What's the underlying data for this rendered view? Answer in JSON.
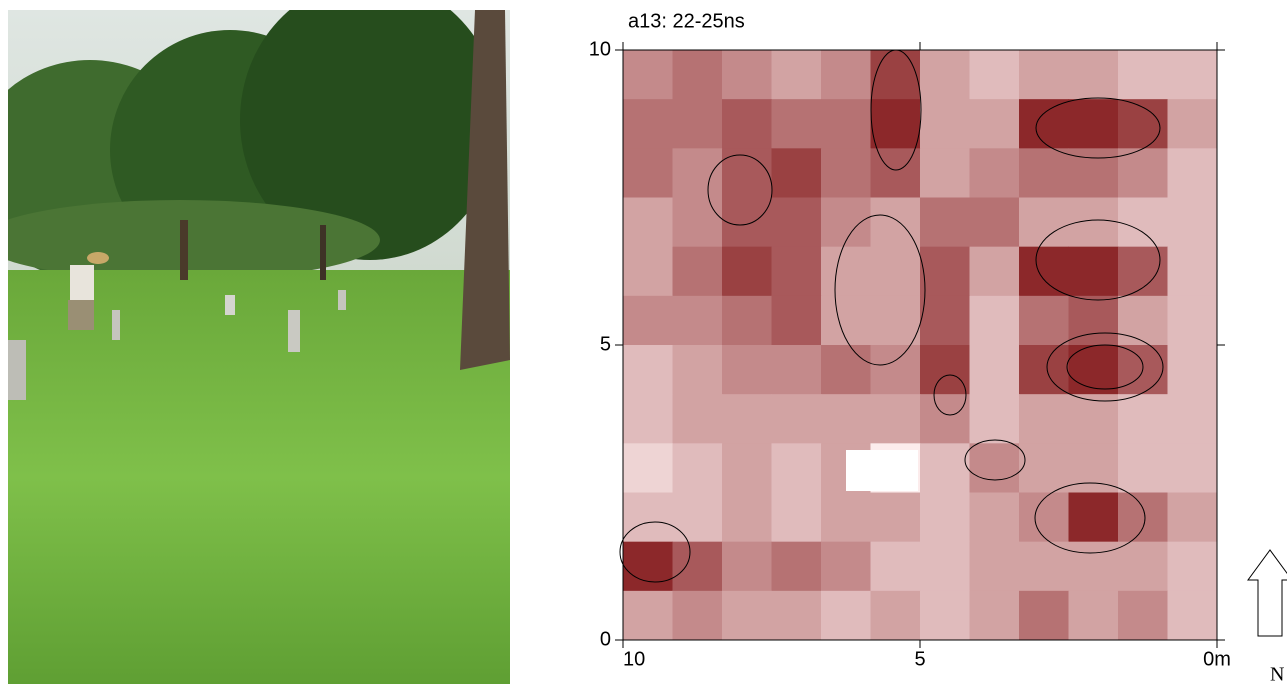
{
  "chart_data": {
    "type": "heatmap",
    "title": "a13: 22-25ns",
    "xlim": [
      10,
      0
    ],
    "ylim": [
      0,
      10
    ],
    "xticks": [
      10,
      5,
      {
        "value": 0,
        "label": "0m"
      }
    ],
    "yticks": [
      0,
      5,
      10
    ],
    "north_label": "N",
    "z": [
      [
        4,
        5,
        4,
        3,
        4,
        7,
        3,
        2,
        3,
        3,
        2,
        2
      ],
      [
        5,
        5,
        6,
        5,
        5,
        8,
        3,
        3,
        8,
        8,
        7,
        3
      ],
      [
        5,
        4,
        6,
        7,
        5,
        6,
        3,
        4,
        5,
        5,
        4,
        2
      ],
      [
        3,
        4,
        6,
        6,
        4,
        3,
        5,
        5,
        3,
        3,
        2,
        2
      ],
      [
        3,
        5,
        7,
        6,
        3,
        3,
        6,
        3,
        8,
        8,
        6,
        2
      ],
      [
        4,
        4,
        5,
        6,
        3,
        3,
        6,
        2,
        5,
        6,
        3,
        2
      ],
      [
        2,
        3,
        4,
        4,
        5,
        4,
        7,
        2,
        7,
        8,
        6,
        2
      ],
      [
        2,
        3,
        3,
        3,
        3,
        3,
        4,
        2,
        3,
        3,
        2,
        2
      ],
      [
        1,
        2,
        3,
        2,
        3,
        0,
        2,
        4,
        3,
        3,
        2,
        2
      ],
      [
        2,
        2,
        3,
        2,
        3,
        3,
        2,
        3,
        4,
        8,
        5,
        3
      ],
      [
        8,
        6,
        4,
        5,
        4,
        2,
        2,
        3,
        3,
        3,
        3,
        2
      ],
      [
        3,
        4,
        3,
        3,
        2,
        3,
        2,
        3,
        5,
        3,
        4,
        2
      ]
    ]
  }
}
